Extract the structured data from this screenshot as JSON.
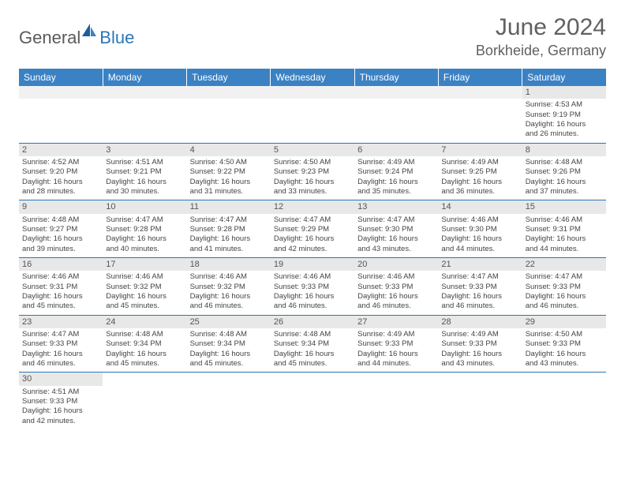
{
  "brand": {
    "general": "General",
    "blue": "Blue"
  },
  "title": "June 2024",
  "location": "Borkheide, Germany",
  "colors": {
    "header_bg": "#3b82c4",
    "header_text": "#ffffff",
    "border": "#2a76b8",
    "daynum_bg": "#e8e8e8",
    "text": "#444444",
    "title_color": "#606060"
  },
  "weekdays": [
    "Sunday",
    "Monday",
    "Tuesday",
    "Wednesday",
    "Thursday",
    "Friday",
    "Saturday"
  ],
  "weeks": [
    [
      {
        "empty": true
      },
      {
        "empty": true
      },
      {
        "empty": true
      },
      {
        "empty": true
      },
      {
        "empty": true
      },
      {
        "empty": true
      },
      {
        "day": "1",
        "sunrise": "Sunrise: 4:53 AM",
        "sunset": "Sunset: 9:19 PM",
        "daylight1": "Daylight: 16 hours",
        "daylight2": "and 26 minutes."
      }
    ],
    [
      {
        "day": "2",
        "sunrise": "Sunrise: 4:52 AM",
        "sunset": "Sunset: 9:20 PM",
        "daylight1": "Daylight: 16 hours",
        "daylight2": "and 28 minutes."
      },
      {
        "day": "3",
        "sunrise": "Sunrise: 4:51 AM",
        "sunset": "Sunset: 9:21 PM",
        "daylight1": "Daylight: 16 hours",
        "daylight2": "and 30 minutes."
      },
      {
        "day": "4",
        "sunrise": "Sunrise: 4:50 AM",
        "sunset": "Sunset: 9:22 PM",
        "daylight1": "Daylight: 16 hours",
        "daylight2": "and 31 minutes."
      },
      {
        "day": "5",
        "sunrise": "Sunrise: 4:50 AM",
        "sunset": "Sunset: 9:23 PM",
        "daylight1": "Daylight: 16 hours",
        "daylight2": "and 33 minutes."
      },
      {
        "day": "6",
        "sunrise": "Sunrise: 4:49 AM",
        "sunset": "Sunset: 9:24 PM",
        "daylight1": "Daylight: 16 hours",
        "daylight2": "and 35 minutes."
      },
      {
        "day": "7",
        "sunrise": "Sunrise: 4:49 AM",
        "sunset": "Sunset: 9:25 PM",
        "daylight1": "Daylight: 16 hours",
        "daylight2": "and 36 minutes."
      },
      {
        "day": "8",
        "sunrise": "Sunrise: 4:48 AM",
        "sunset": "Sunset: 9:26 PM",
        "daylight1": "Daylight: 16 hours",
        "daylight2": "and 37 minutes."
      }
    ],
    [
      {
        "day": "9",
        "sunrise": "Sunrise: 4:48 AM",
        "sunset": "Sunset: 9:27 PM",
        "daylight1": "Daylight: 16 hours",
        "daylight2": "and 39 minutes."
      },
      {
        "day": "10",
        "sunrise": "Sunrise: 4:47 AM",
        "sunset": "Sunset: 9:28 PM",
        "daylight1": "Daylight: 16 hours",
        "daylight2": "and 40 minutes."
      },
      {
        "day": "11",
        "sunrise": "Sunrise: 4:47 AM",
        "sunset": "Sunset: 9:28 PM",
        "daylight1": "Daylight: 16 hours",
        "daylight2": "and 41 minutes."
      },
      {
        "day": "12",
        "sunrise": "Sunrise: 4:47 AM",
        "sunset": "Sunset: 9:29 PM",
        "daylight1": "Daylight: 16 hours",
        "daylight2": "and 42 minutes."
      },
      {
        "day": "13",
        "sunrise": "Sunrise: 4:47 AM",
        "sunset": "Sunset: 9:30 PM",
        "daylight1": "Daylight: 16 hours",
        "daylight2": "and 43 minutes."
      },
      {
        "day": "14",
        "sunrise": "Sunrise: 4:46 AM",
        "sunset": "Sunset: 9:30 PM",
        "daylight1": "Daylight: 16 hours",
        "daylight2": "and 44 minutes."
      },
      {
        "day": "15",
        "sunrise": "Sunrise: 4:46 AM",
        "sunset": "Sunset: 9:31 PM",
        "daylight1": "Daylight: 16 hours",
        "daylight2": "and 44 minutes."
      }
    ],
    [
      {
        "day": "16",
        "sunrise": "Sunrise: 4:46 AM",
        "sunset": "Sunset: 9:31 PM",
        "daylight1": "Daylight: 16 hours",
        "daylight2": "and 45 minutes."
      },
      {
        "day": "17",
        "sunrise": "Sunrise: 4:46 AM",
        "sunset": "Sunset: 9:32 PM",
        "daylight1": "Daylight: 16 hours",
        "daylight2": "and 45 minutes."
      },
      {
        "day": "18",
        "sunrise": "Sunrise: 4:46 AM",
        "sunset": "Sunset: 9:32 PM",
        "daylight1": "Daylight: 16 hours",
        "daylight2": "and 46 minutes."
      },
      {
        "day": "19",
        "sunrise": "Sunrise: 4:46 AM",
        "sunset": "Sunset: 9:33 PM",
        "daylight1": "Daylight: 16 hours",
        "daylight2": "and 46 minutes."
      },
      {
        "day": "20",
        "sunrise": "Sunrise: 4:46 AM",
        "sunset": "Sunset: 9:33 PM",
        "daylight1": "Daylight: 16 hours",
        "daylight2": "and 46 minutes."
      },
      {
        "day": "21",
        "sunrise": "Sunrise: 4:47 AM",
        "sunset": "Sunset: 9:33 PM",
        "daylight1": "Daylight: 16 hours",
        "daylight2": "and 46 minutes."
      },
      {
        "day": "22",
        "sunrise": "Sunrise: 4:47 AM",
        "sunset": "Sunset: 9:33 PM",
        "daylight1": "Daylight: 16 hours",
        "daylight2": "and 46 minutes."
      }
    ],
    [
      {
        "day": "23",
        "sunrise": "Sunrise: 4:47 AM",
        "sunset": "Sunset: 9:33 PM",
        "daylight1": "Daylight: 16 hours",
        "daylight2": "and 46 minutes."
      },
      {
        "day": "24",
        "sunrise": "Sunrise: 4:48 AM",
        "sunset": "Sunset: 9:34 PM",
        "daylight1": "Daylight: 16 hours",
        "daylight2": "and 45 minutes."
      },
      {
        "day": "25",
        "sunrise": "Sunrise: 4:48 AM",
        "sunset": "Sunset: 9:34 PM",
        "daylight1": "Daylight: 16 hours",
        "daylight2": "and 45 minutes."
      },
      {
        "day": "26",
        "sunrise": "Sunrise: 4:48 AM",
        "sunset": "Sunset: 9:34 PM",
        "daylight1": "Daylight: 16 hours",
        "daylight2": "and 45 minutes."
      },
      {
        "day": "27",
        "sunrise": "Sunrise: 4:49 AM",
        "sunset": "Sunset: 9:33 PM",
        "daylight1": "Daylight: 16 hours",
        "daylight2": "and 44 minutes."
      },
      {
        "day": "28",
        "sunrise": "Sunrise: 4:49 AM",
        "sunset": "Sunset: 9:33 PM",
        "daylight1": "Daylight: 16 hours",
        "daylight2": "and 43 minutes."
      },
      {
        "day": "29",
        "sunrise": "Sunrise: 4:50 AM",
        "sunset": "Sunset: 9:33 PM",
        "daylight1": "Daylight: 16 hours",
        "daylight2": "and 43 minutes."
      }
    ],
    [
      {
        "day": "30",
        "sunrise": "Sunrise: 4:51 AM",
        "sunset": "Sunset: 9:33 PM",
        "daylight1": "Daylight: 16 hours",
        "daylight2": "and 42 minutes."
      },
      {
        "empty": true
      },
      {
        "empty": true
      },
      {
        "empty": true
      },
      {
        "empty": true
      },
      {
        "empty": true
      },
      {
        "empty": true
      }
    ]
  ]
}
